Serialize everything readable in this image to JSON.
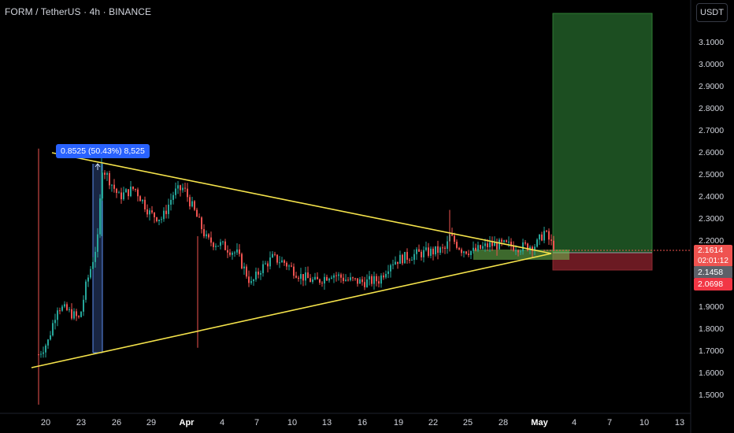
{
  "header": {
    "symbol_title": "FORM / TetherUS · 4h · BINANCE"
  },
  "toolbar": {
    "currency_label": "USDT"
  },
  "measure_label": "0.8525 (50.43%) 8,525",
  "price_axis": {
    "labels": [
      "3.1000",
      "3.0000",
      "2.9000",
      "2.8000",
      "2.7000",
      "2.6000",
      "2.5000",
      "2.4000",
      "2.3000",
      "2.2000",
      "1.9000",
      "1.8000",
      "1.7000",
      "1.6000",
      "1.5000"
    ]
  },
  "price_tags": {
    "last_price": "2.1614",
    "countdown": "02:01:12",
    "entry": "2.1458",
    "stop": "2.0698"
  },
  "time_axis": {
    "labels": [
      "20",
      "23",
      "26",
      "29",
      "Apr",
      "4",
      "7",
      "10",
      "13",
      "16",
      "19",
      "22",
      "25",
      "28",
      "May",
      "4",
      "7",
      "10",
      "13"
    ]
  },
  "chart_data": {
    "type": "candlestick",
    "symbol": "FORM / TetherUS",
    "interval": "4h",
    "exchange": "BINANCE",
    "y_range": [
      1.43,
      3.2
    ],
    "y_ticks": [
      1.5,
      1.6,
      1.7,
      1.8,
      1.9,
      2.0,
      2.1,
      2.2,
      2.3,
      2.4,
      2.5,
      2.6,
      2.7,
      2.8,
      2.9,
      3.0,
      3.1
    ],
    "x_ticks": [
      "20",
      "23",
      "26",
      "29",
      "Apr",
      "4",
      "7",
      "10",
      "13",
      "16",
      "19",
      "22",
      "25",
      "28",
      "May",
      "4",
      "7",
      "10",
      "13"
    ],
    "trendlines": [
      {
        "name": "upper",
        "from": {
          "x": "Mar 24",
          "y": 2.6
        },
        "to": {
          "x": "May 2",
          "y": 2.16
        }
      },
      {
        "name": "lower",
        "from": {
          "x": "Mar 19",
          "y": 1.62
        },
        "to": {
          "x": "May 2",
          "y": 2.16
        }
      }
    ],
    "measure": {
      "change": 0.8525,
      "percent": 50.43,
      "ticks": 8525,
      "from": 1.69,
      "to": 2.55
    },
    "position": {
      "type": "long",
      "entry": 2.1458,
      "stop": 2.0698,
      "target": 3.2
    },
    "last_price": 2.1614,
    "colors": {
      "up": "#26a69a",
      "down": "#ef5350",
      "trendline": "#f5e34b",
      "profit": "#1b5e20",
      "loss": "#7a1a1f"
    }
  }
}
